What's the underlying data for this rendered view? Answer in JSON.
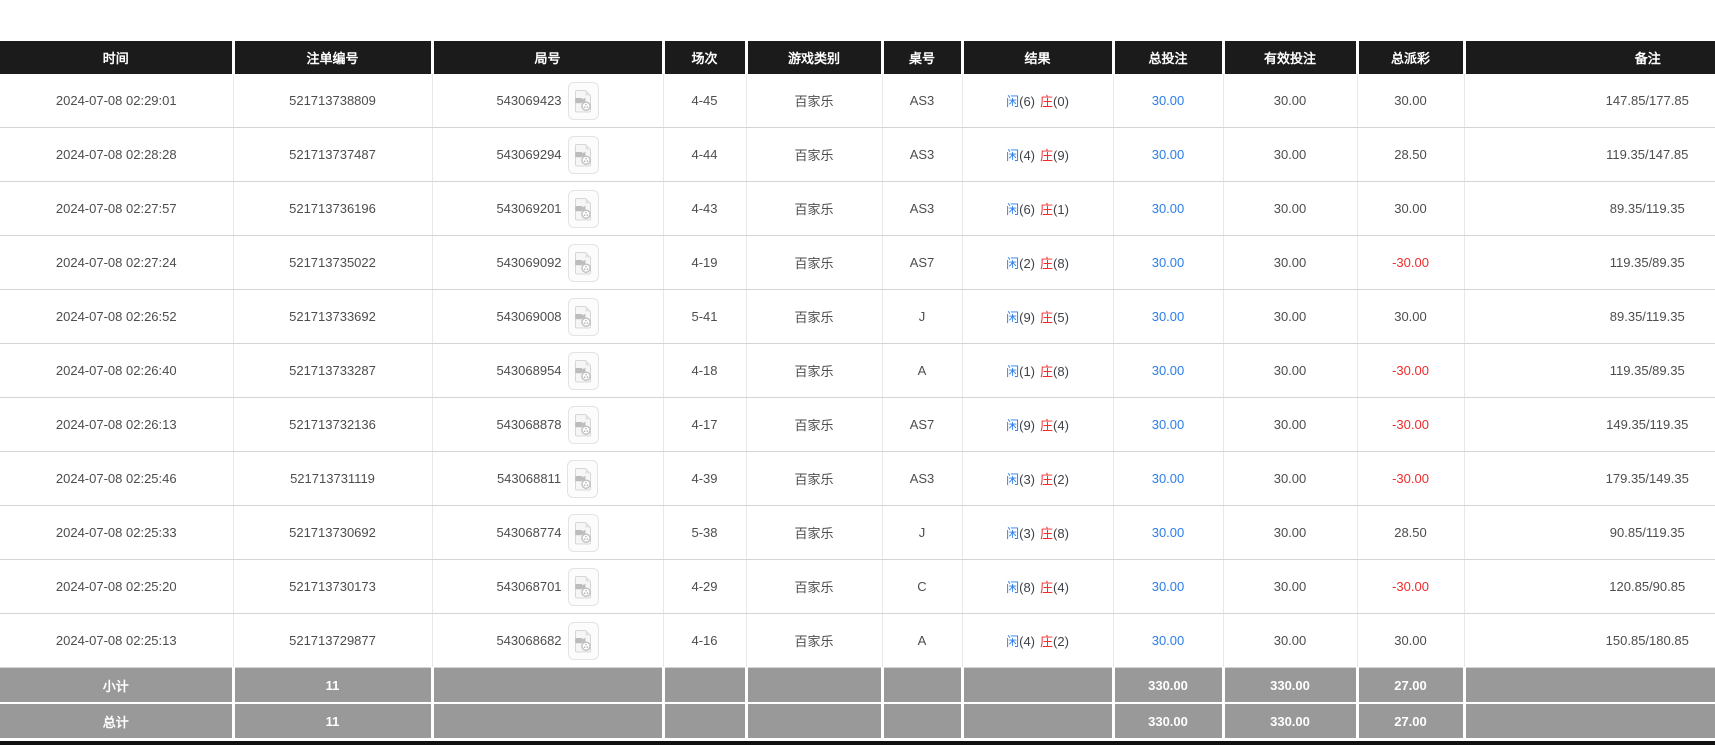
{
  "table": {
    "columns": [
      {
        "key": "time",
        "label": "时间"
      },
      {
        "key": "bet_no",
        "label": "注单编号"
      },
      {
        "key": "round_no",
        "label": "局号"
      },
      {
        "key": "session",
        "label": "场次"
      },
      {
        "key": "game_type",
        "label": "游戏类别"
      },
      {
        "key": "table_no",
        "label": "桌号"
      },
      {
        "key": "result",
        "label": "结果"
      },
      {
        "key": "total_bet",
        "label": "总投注"
      },
      {
        "key": "valid_bet",
        "label": "有效投注"
      },
      {
        "key": "total_payout",
        "label": "总派彩"
      },
      {
        "key": "remark",
        "label": "备注"
      }
    ],
    "rows": [
      {
        "time": "2024-07-08 02:29:01",
        "bet_no": "521713738809",
        "round_no": "543069423",
        "session": "4-45",
        "game_type": "百家乐",
        "table_no": "AS3",
        "result": {
          "player": "闲",
          "player_points": "(6)",
          "banker": "庄",
          "banker_points": "(0)"
        },
        "total_bet": "30.00",
        "valid_bet": "30.00",
        "total_payout": "30.00",
        "remark": "147.85/177.85"
      },
      {
        "time": "2024-07-08 02:28:28",
        "bet_no": "521713737487",
        "round_no": "543069294",
        "session": "4-44",
        "game_type": "百家乐",
        "table_no": "AS3",
        "result": {
          "player": "闲",
          "player_points": "(4)",
          "banker": "庄",
          "banker_points": "(9)"
        },
        "total_bet": "30.00",
        "valid_bet": "30.00",
        "total_payout": "28.50",
        "remark": "119.35/147.85"
      },
      {
        "time": "2024-07-08 02:27:57",
        "bet_no": "521713736196",
        "round_no": "543069201",
        "session": "4-43",
        "game_type": "百家乐",
        "table_no": "AS3",
        "result": {
          "player": "闲",
          "player_points": "(6)",
          "banker": "庄",
          "banker_points": "(1)"
        },
        "total_bet": "30.00",
        "valid_bet": "30.00",
        "total_payout": "30.00",
        "remark": "89.35/119.35"
      },
      {
        "time": "2024-07-08 02:27:24",
        "bet_no": "521713735022",
        "round_no": "543069092",
        "session": "4-19",
        "game_type": "百家乐",
        "table_no": "AS7",
        "result": {
          "player": "闲",
          "player_points": "(2)",
          "banker": "庄",
          "banker_points": "(8)"
        },
        "total_bet": "30.00",
        "valid_bet": "30.00",
        "total_payout": "-30.00",
        "remark": "119.35/89.35"
      },
      {
        "time": "2024-07-08 02:26:52",
        "bet_no": "521713733692",
        "round_no": "543069008",
        "session": "5-41",
        "game_type": "百家乐",
        "table_no": "J",
        "result": {
          "player": "闲",
          "player_points": "(9)",
          "banker": "庄",
          "banker_points": "(5)"
        },
        "total_bet": "30.00",
        "valid_bet": "30.00",
        "total_payout": "30.00",
        "remark": "89.35/119.35"
      },
      {
        "time": "2024-07-08 02:26:40",
        "bet_no": "521713733287",
        "round_no": "543068954",
        "session": "4-18",
        "game_type": "百家乐",
        "table_no": "A",
        "result": {
          "player": "闲",
          "player_points": "(1)",
          "banker": "庄",
          "banker_points": "(8)"
        },
        "total_bet": "30.00",
        "valid_bet": "30.00",
        "total_payout": "-30.00",
        "remark": "119.35/89.35"
      },
      {
        "time": "2024-07-08 02:26:13",
        "bet_no": "521713732136",
        "round_no": "543068878",
        "session": "4-17",
        "game_type": "百家乐",
        "table_no": "AS7",
        "result": {
          "player": "闲",
          "player_points": "(9)",
          "banker": "庄",
          "banker_points": "(4)"
        },
        "total_bet": "30.00",
        "valid_bet": "30.00",
        "total_payout": "-30.00",
        "remark": "149.35/119.35"
      },
      {
        "time": "2024-07-08 02:25:46",
        "bet_no": "521713731119",
        "round_no": "543068811",
        "session": "4-39",
        "game_type": "百家乐",
        "table_no": "AS3",
        "result": {
          "player": "闲",
          "player_points": "(3)",
          "banker": "庄",
          "banker_points": "(2)"
        },
        "total_bet": "30.00",
        "valid_bet": "30.00",
        "total_payout": "-30.00",
        "remark": "179.35/149.35"
      },
      {
        "time": "2024-07-08 02:25:33",
        "bet_no": "521713730692",
        "round_no": "543068774",
        "session": "5-38",
        "game_type": "百家乐",
        "table_no": "J",
        "result": {
          "player": "闲",
          "player_points": "(3)",
          "banker": "庄",
          "banker_points": "(8)"
        },
        "total_bet": "30.00",
        "valid_bet": "30.00",
        "total_payout": "28.50",
        "remark": "90.85/119.35"
      },
      {
        "time": "2024-07-08 02:25:20",
        "bet_no": "521713730173",
        "round_no": "543068701",
        "session": "4-29",
        "game_type": "百家乐",
        "table_no": "C",
        "result": {
          "player": "闲",
          "player_points": "(8)",
          "banker": "庄",
          "banker_points": "(4)"
        },
        "total_bet": "30.00",
        "valid_bet": "30.00",
        "total_payout": "-30.00",
        "remark": "120.85/90.85"
      },
      {
        "time": "2024-07-08 02:25:13",
        "bet_no": "521713729877",
        "round_no": "543068682",
        "session": "4-16",
        "game_type": "百家乐",
        "table_no": "A",
        "result": {
          "player": "闲",
          "player_points": "(4)",
          "banker": "庄",
          "banker_points": "(2)"
        },
        "total_bet": "30.00",
        "valid_bet": "30.00",
        "total_payout": "30.00",
        "remark": "150.85/180.85"
      }
    ],
    "footer": [
      {
        "label": "小计",
        "bet_count": "11",
        "total_bet": "330.00",
        "valid_bet": "330.00",
        "total_payout": "27.00"
      },
      {
        "label": "总计",
        "bet_count": "11",
        "total_bet": "330.00",
        "valid_bet": "330.00",
        "total_payout": "27.00"
      }
    ]
  },
  "colors": {
    "header_bg": "#1b1b1b",
    "footer_bg": "#999999",
    "link_blue": "#2b7de9",
    "player_blue": "#2b7de9",
    "banker_red": "#f02b2b",
    "negative_red": "#f02b2b",
    "body_text": "#4d4d4d"
  }
}
